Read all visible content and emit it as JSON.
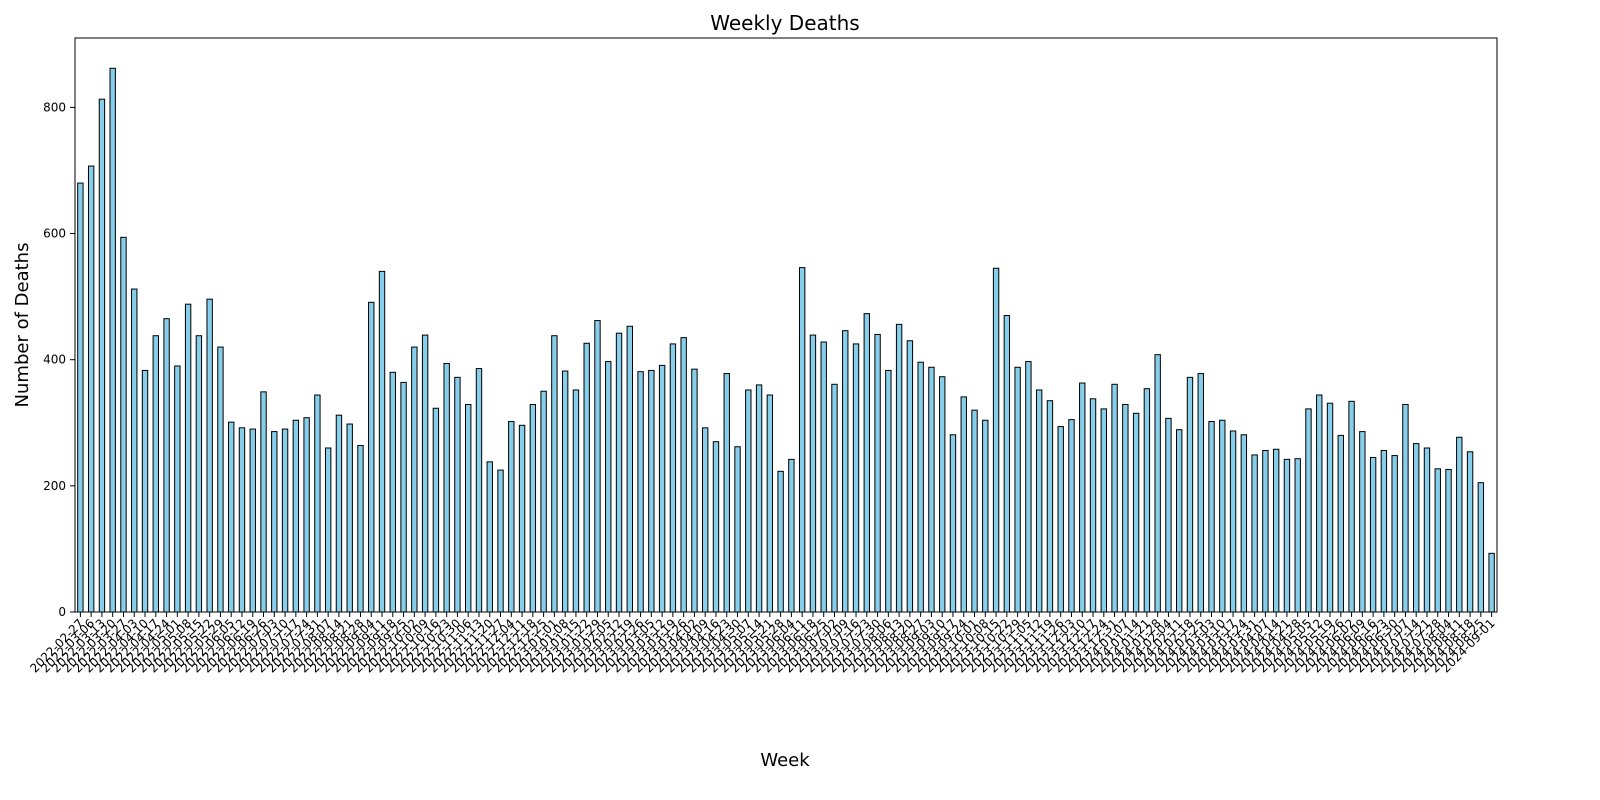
{
  "chart_data": {
    "type": "bar",
    "title": "Weekly Deaths",
    "xlabel": "Week",
    "ylabel": "Number of Deaths",
    "ylim": [
      0,
      910
    ],
    "yticks": [
      0,
      200,
      400,
      600,
      800
    ],
    "grid": false,
    "legend": "none",
    "bar_color": "#87ceeb",
    "bar_edge_color": "#000000",
    "series": [
      {
        "values": [
          680,
          707,
          813,
          862,
          594,
          512,
          383,
          438,
          465,
          390,
          488,
          438,
          496,
          420,
          301,
          292,
          290,
          349,
          286,
          290,
          304,
          308,
          344,
          260,
          312,
          298,
          264,
          491,
          540,
          380,
          364,
          420,
          439,
          323,
          394,
          372,
          329,
          386,
          238,
          225,
          302,
          296,
          329,
          350,
          438,
          382,
          352,
          426,
          462,
          397,
          442,
          453,
          381,
          383,
          391,
          425,
          435,
          385,
          292,
          270,
          378,
          262,
          352,
          360,
          344,
          223,
          242,
          546,
          439,
          428,
          361,
          446,
          425,
          473,
          440,
          383,
          456,
          430,
          396,
          388,
          373,
          281,
          341,
          320,
          304,
          545,
          470,
          388,
          397,
          352,
          335,
          294,
          305,
          363,
          338,
          322,
          361,
          329,
          315,
          354,
          408,
          307,
          289,
          372,
          378,
          302,
          304,
          287,
          281,
          249,
          256,
          258,
          242,
          243,
          322,
          344,
          331,
          280,
          334,
          286,
          245,
          256,
          248,
          329,
          267,
          260,
          227,
          226,
          277,
          254,
          205,
          93
        ]
      }
    ],
    "categories": [
      "2022-02-27",
      "2022-03-06",
      "2022-03-13",
      "2022-03-20",
      "2022-03-27",
      "2022-04-03",
      "2022-04-10",
      "2022-04-17",
      "2022-04-24",
      "2022-05-01",
      "2022-05-08",
      "2022-05-15",
      "2022-05-22",
      "2022-05-29",
      "2022-06-05",
      "2022-06-12",
      "2022-06-19",
      "2022-06-26",
      "2022-07-03",
      "2022-07-10",
      "2022-07-17",
      "2022-07-24",
      "2022-07-31",
      "2022-08-07",
      "2022-08-14",
      "2022-08-21",
      "2022-08-28",
      "2022-09-04",
      "2022-09-11",
      "2022-09-18",
      "2022-09-25",
      "2022-10-02",
      "2022-10-09",
      "2022-10-16",
      "2022-10-23",
      "2022-10-30",
      "2022-11-06",
      "2022-11-13",
      "2022-11-20",
      "2022-11-27",
      "2022-12-04",
      "2022-12-11",
      "2022-12-18",
      "2022-12-25",
      "2023-01-01",
      "2023-01-08",
      "2023-01-15",
      "2023-01-22",
      "2023-01-29",
      "2023-02-05",
      "2023-02-12",
      "2023-02-19",
      "2023-02-26",
      "2023-03-05",
      "2023-03-12",
      "2023-03-19",
      "2023-03-26",
      "2023-04-02",
      "2023-04-09",
      "2023-04-16",
      "2023-04-23",
      "2023-04-30",
      "2023-05-07",
      "2023-05-14",
      "2023-05-21",
      "2023-05-28",
      "2023-06-04",
      "2023-06-11",
      "2023-06-18",
      "2023-06-25",
      "2023-07-02",
      "2023-07-09",
      "2023-07-16",
      "2023-07-23",
      "2023-07-30",
      "2023-08-06",
      "2023-08-13",
      "2023-08-20",
      "2023-08-27",
      "2023-09-03",
      "2023-09-10",
      "2023-09-17",
      "2023-09-24",
      "2023-10-01",
      "2023-10-08",
      "2023-10-15",
      "2023-10-22",
      "2023-10-29",
      "2023-11-05",
      "2023-11-12",
      "2023-11-19",
      "2023-11-26",
      "2023-12-03",
      "2023-12-10",
      "2023-12-17",
      "2023-12-24",
      "2023-12-31",
      "2024-01-07",
      "2024-01-14",
      "2024-01-21",
      "2024-01-28",
      "2024-02-04",
      "2024-02-11",
      "2024-02-18",
      "2024-02-25",
      "2024-03-03",
      "2024-03-10",
      "2024-03-17",
      "2024-03-24",
      "2024-03-31",
      "2024-04-07",
      "2024-04-14",
      "2024-04-21",
      "2024-04-28",
      "2024-05-05",
      "2024-05-12",
      "2024-05-19",
      "2024-05-26",
      "2024-06-02",
      "2024-06-09",
      "2024-06-16",
      "2024-06-23",
      "2024-06-30",
      "2024-07-07",
      "2024-07-14",
      "2024-07-21",
      "2024-07-28",
      "2024-08-04",
      "2024-08-11",
      "2024-08-18",
      "2024-08-25",
      "2024-09-01"
    ]
  }
}
